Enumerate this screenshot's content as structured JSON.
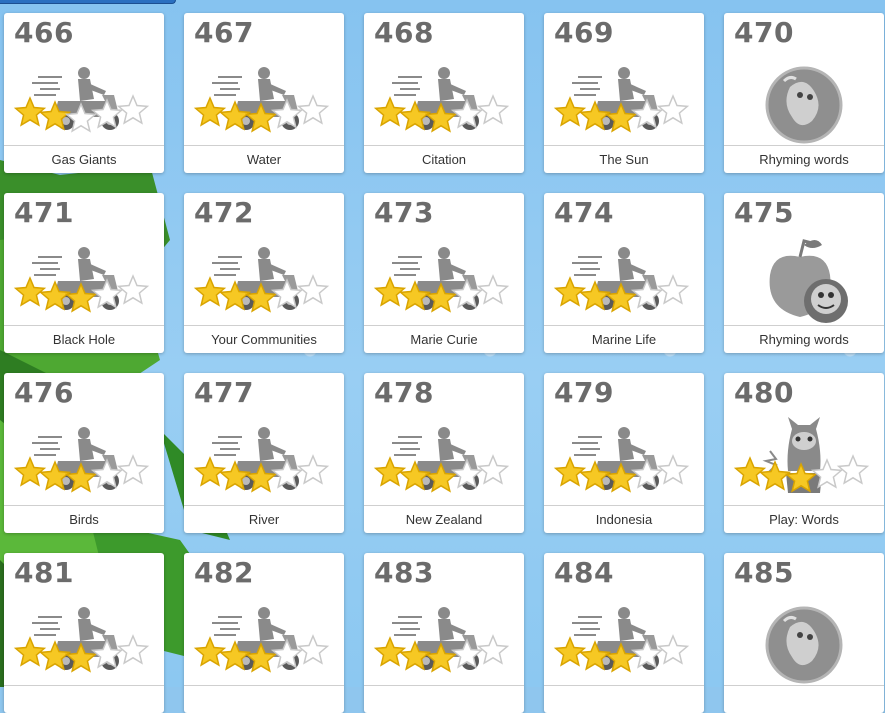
{
  "cards": [
    {
      "number": "466",
      "label": "Gas Giants",
      "kind": "scooter",
      "stars": 2
    },
    {
      "number": "467",
      "label": "Water",
      "kind": "scooter",
      "stars": 3
    },
    {
      "number": "468",
      "label": "Citation",
      "kind": "scooter",
      "stars": 3
    },
    {
      "number": "469",
      "label": "The Sun",
      "kind": "scooter",
      "stars": 3
    },
    {
      "number": "470",
      "label": "Rhyming words",
      "kind": "bubble-creature",
      "stars": 0
    },
    {
      "number": "471",
      "label": "Black Hole",
      "kind": "scooter",
      "stars": 3
    },
    {
      "number": "472",
      "label": "Your Communities",
      "kind": "scooter",
      "stars": 3
    },
    {
      "number": "473",
      "label": "Marie Curie",
      "kind": "scooter",
      "stars": 3
    },
    {
      "number": "474",
      "label": "Marine Life",
      "kind": "scooter",
      "stars": 3
    },
    {
      "number": "475",
      "label": "Rhyming words",
      "kind": "apple-creature",
      "stars": 0
    },
    {
      "number": "476",
      "label": "Birds",
      "kind": "scooter",
      "stars": 3
    },
    {
      "number": "477",
      "label": "River",
      "kind": "scooter",
      "stars": 3
    },
    {
      "number": "478",
      "label": "New Zealand",
      "kind": "scooter",
      "stars": 3
    },
    {
      "number": "479",
      "label": "Indonesia",
      "kind": "scooter",
      "stars": 3
    },
    {
      "number": "480",
      "label": "Play: Words",
      "kind": "monster",
      "stars": 3
    },
    {
      "number": "481",
      "label": "",
      "kind": "scooter",
      "stars": 3
    },
    {
      "number": "482",
      "label": "",
      "kind": "scooter",
      "stars": 3
    },
    {
      "number": "483",
      "label": "",
      "kind": "scooter",
      "stars": 3
    },
    {
      "number": "484",
      "label": "",
      "kind": "scooter",
      "stars": 3
    },
    {
      "number": "485",
      "label": "",
      "kind": "bubble-creature",
      "stars": 0
    }
  ],
  "colors": {
    "star_fill": "#f6c823",
    "star_empty": "#ffffff",
    "art_gray": "#8a8a8a",
    "number_gray": "#6b6b6b"
  },
  "icons": {
    "scooter": "scooter-rider-icon",
    "bubble-creature": "bubble-creature-icon",
    "apple-creature": "apple-creature-icon",
    "monster": "monster-icon",
    "star": "star-icon"
  }
}
